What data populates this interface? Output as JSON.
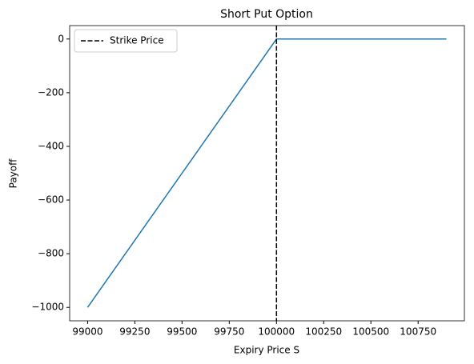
{
  "chart_data": {
    "type": "line",
    "title": "Short Put Option",
    "x_label": "Expiry Price S",
    "y_label": "Payoff",
    "x": [
      99000,
      100000,
      100900
    ],
    "series": [
      {
        "color": "#1f77b4",
        "values": [
          -1000,
          0,
          0
        ]
      }
    ],
    "vlines": [
      {
        "name": "Strike Price",
        "x": 100000,
        "color": "#000000",
        "style": "dashed"
      }
    ],
    "xlim": [
      98905,
      100995
    ],
    "xticks": [
      99000,
      99250,
      99500,
      99750,
      100000,
      100250,
      100500,
      100750
    ],
    "ylim": [
      -1050,
      50
    ],
    "yticks": [
      {
        "value": -1000,
        "label": "−1000"
      },
      {
        "value": -800,
        "label": "−800"
      },
      {
        "value": -600,
        "label": "−600"
      },
      {
        "value": -400,
        "label": "−400"
      },
      {
        "value": -200,
        "label": "−200"
      },
      0
    ],
    "legend": "upper left",
    "grid": false
  }
}
